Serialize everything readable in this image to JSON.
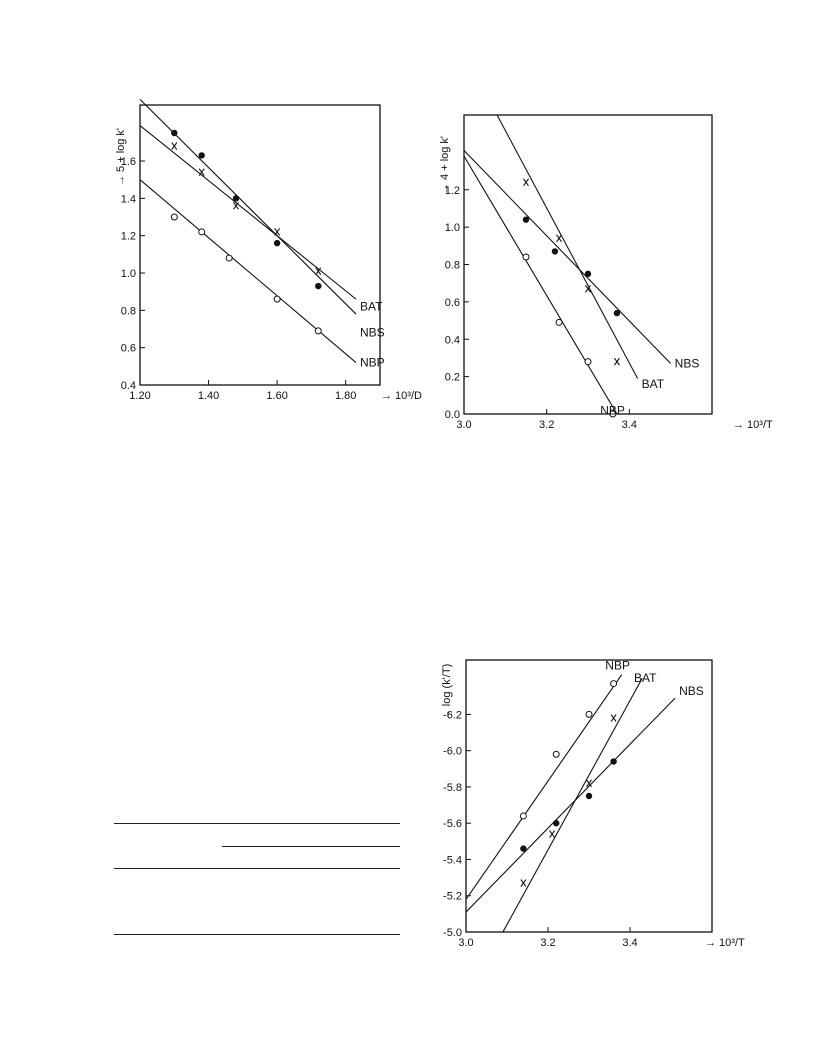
{
  "chart_data": [
    {
      "type": "scatter",
      "xlabel": "→ 10³/D",
      "ylabel": "→ 5 + log k'",
      "xlim": [
        1.2,
        1.9
      ],
      "ylim": [
        0.4,
        1.9
      ],
      "x_ticks": [
        "1.20",
        "1.40",
        "1.60",
        "1.80"
      ],
      "y_ticks": [
        "0.4",
        "0.6",
        "0.8",
        "1.0",
        "1.2",
        "1.4",
        "1.6"
      ],
      "series": [
        {
          "name": "BAT",
          "marker": "filled-circle",
          "points": [
            [
              1.3,
              1.75
            ],
            [
              1.38,
              1.63
            ],
            [
              1.48,
              1.4
            ],
            [
              1.6,
              1.16
            ],
            [
              1.72,
              0.93
            ]
          ],
          "fit": [
            [
              1.2,
              1.93
            ],
            [
              1.83,
              0.78
            ]
          ]
        },
        {
          "name": "NBS",
          "marker": "cross",
          "points": [
            [
              1.3,
              1.68
            ],
            [
              1.38,
              1.54
            ],
            [
              1.48,
              1.36
            ],
            [
              1.6,
              1.22
            ],
            [
              1.72,
              1.01
            ]
          ],
          "fit": [
            [
              1.2,
              1.79
            ],
            [
              1.83,
              0.86
            ]
          ]
        },
        {
          "name": "NBP",
          "marker": "open-circle",
          "points": [
            [
              1.3,
              1.3
            ],
            [
              1.38,
              1.22
            ],
            [
              1.46,
              1.08
            ],
            [
              1.6,
              0.86
            ],
            [
              1.72,
              0.69
            ]
          ],
          "fit": [
            [
              1.2,
              1.5
            ],
            [
              1.83,
              0.52
            ]
          ]
        }
      ]
    },
    {
      "type": "scatter",
      "xlabel": "→ 10³/T",
      "ylabel": "→ 4 + log k'",
      "xlim": [
        3.0,
        3.6
      ],
      "ylim": [
        0.0,
        1.6
      ],
      "x_ticks": [
        "3.0",
        "3.2",
        "3.4"
      ],
      "y_ticks": [
        "0.0",
        "0.2",
        "0.4",
        "0.6",
        "0.8",
        "1.0",
        "1.2"
      ],
      "series": [
        {
          "name": "NBS",
          "marker": "filled-circle",
          "points": [
            [
              3.15,
              1.04
            ],
            [
              3.22,
              0.87
            ],
            [
              3.3,
              0.75
            ],
            [
              3.37,
              0.54
            ]
          ],
          "fit": [
            [
              3.0,
              1.41
            ],
            [
              3.5,
              0.27
            ]
          ]
        },
        {
          "name": "BAT",
          "marker": "cross",
          "points": [
            [
              3.15,
              1.24
            ],
            [
              3.23,
              0.94
            ],
            [
              3.3,
              0.67
            ],
            [
              3.37,
              0.28
            ]
          ],
          "fit": [
            [
              3.08,
              1.6
            ],
            [
              3.42,
              0.19
            ]
          ]
        },
        {
          "name": "NBP",
          "marker": "open-circle",
          "points": [
            [
              3.15,
              0.84
            ],
            [
              3.23,
              0.49
            ],
            [
              3.3,
              0.28
            ],
            [
              3.36,
              0.0
            ]
          ],
          "fit": [
            [
              3.0,
              1.38
            ],
            [
              3.37,
              0.0
            ]
          ]
        }
      ]
    },
    {
      "type": "scatter",
      "xlabel": "→ 10³/T",
      "ylabel": "→ log (k'/T)",
      "xlim": [
        3.0,
        3.6
      ],
      "ylim": [
        -5.0,
        -6.5
      ],
      "x_ticks": [
        "3.0",
        "3.2",
        "3.4"
      ],
      "y_ticks": [
        "-5.0",
        "-5.2",
        "-5.4",
        "-5.6",
        "-5.8",
        "-6.0",
        "-6.2"
      ],
      "series": [
        {
          "name": "NBP",
          "marker": "open-circle",
          "points": [
            [
              3.14,
              -5.64
            ],
            [
              3.22,
              -5.98
            ],
            [
              3.3,
              -6.2
            ],
            [
              3.36,
              -6.37
            ]
          ],
          "fit": [
            [
              3.0,
              -5.18
            ],
            [
              3.38,
              -6.42
            ]
          ]
        },
        {
          "name": "BAT",
          "marker": "cross",
          "points": [
            [
              3.14,
              -5.27
            ],
            [
              3.21,
              -5.54
            ],
            [
              3.3,
              -5.82
            ],
            [
              3.36,
              -6.18
            ]
          ],
          "fit": [
            [
              3.09,
              -5.0
            ],
            [
              3.43,
              -6.4
            ]
          ]
        },
        {
          "name": "NBS",
          "marker": "filled-circle",
          "points": [
            [
              3.14,
              -5.46
            ],
            [
              3.22,
              -5.6
            ],
            [
              3.3,
              -5.75
            ],
            [
              3.36,
              -5.94
            ]
          ],
          "fit": [
            [
              3.0,
              -5.11
            ],
            [
              3.51,
              -6.29
            ]
          ]
        }
      ]
    }
  ]
}
